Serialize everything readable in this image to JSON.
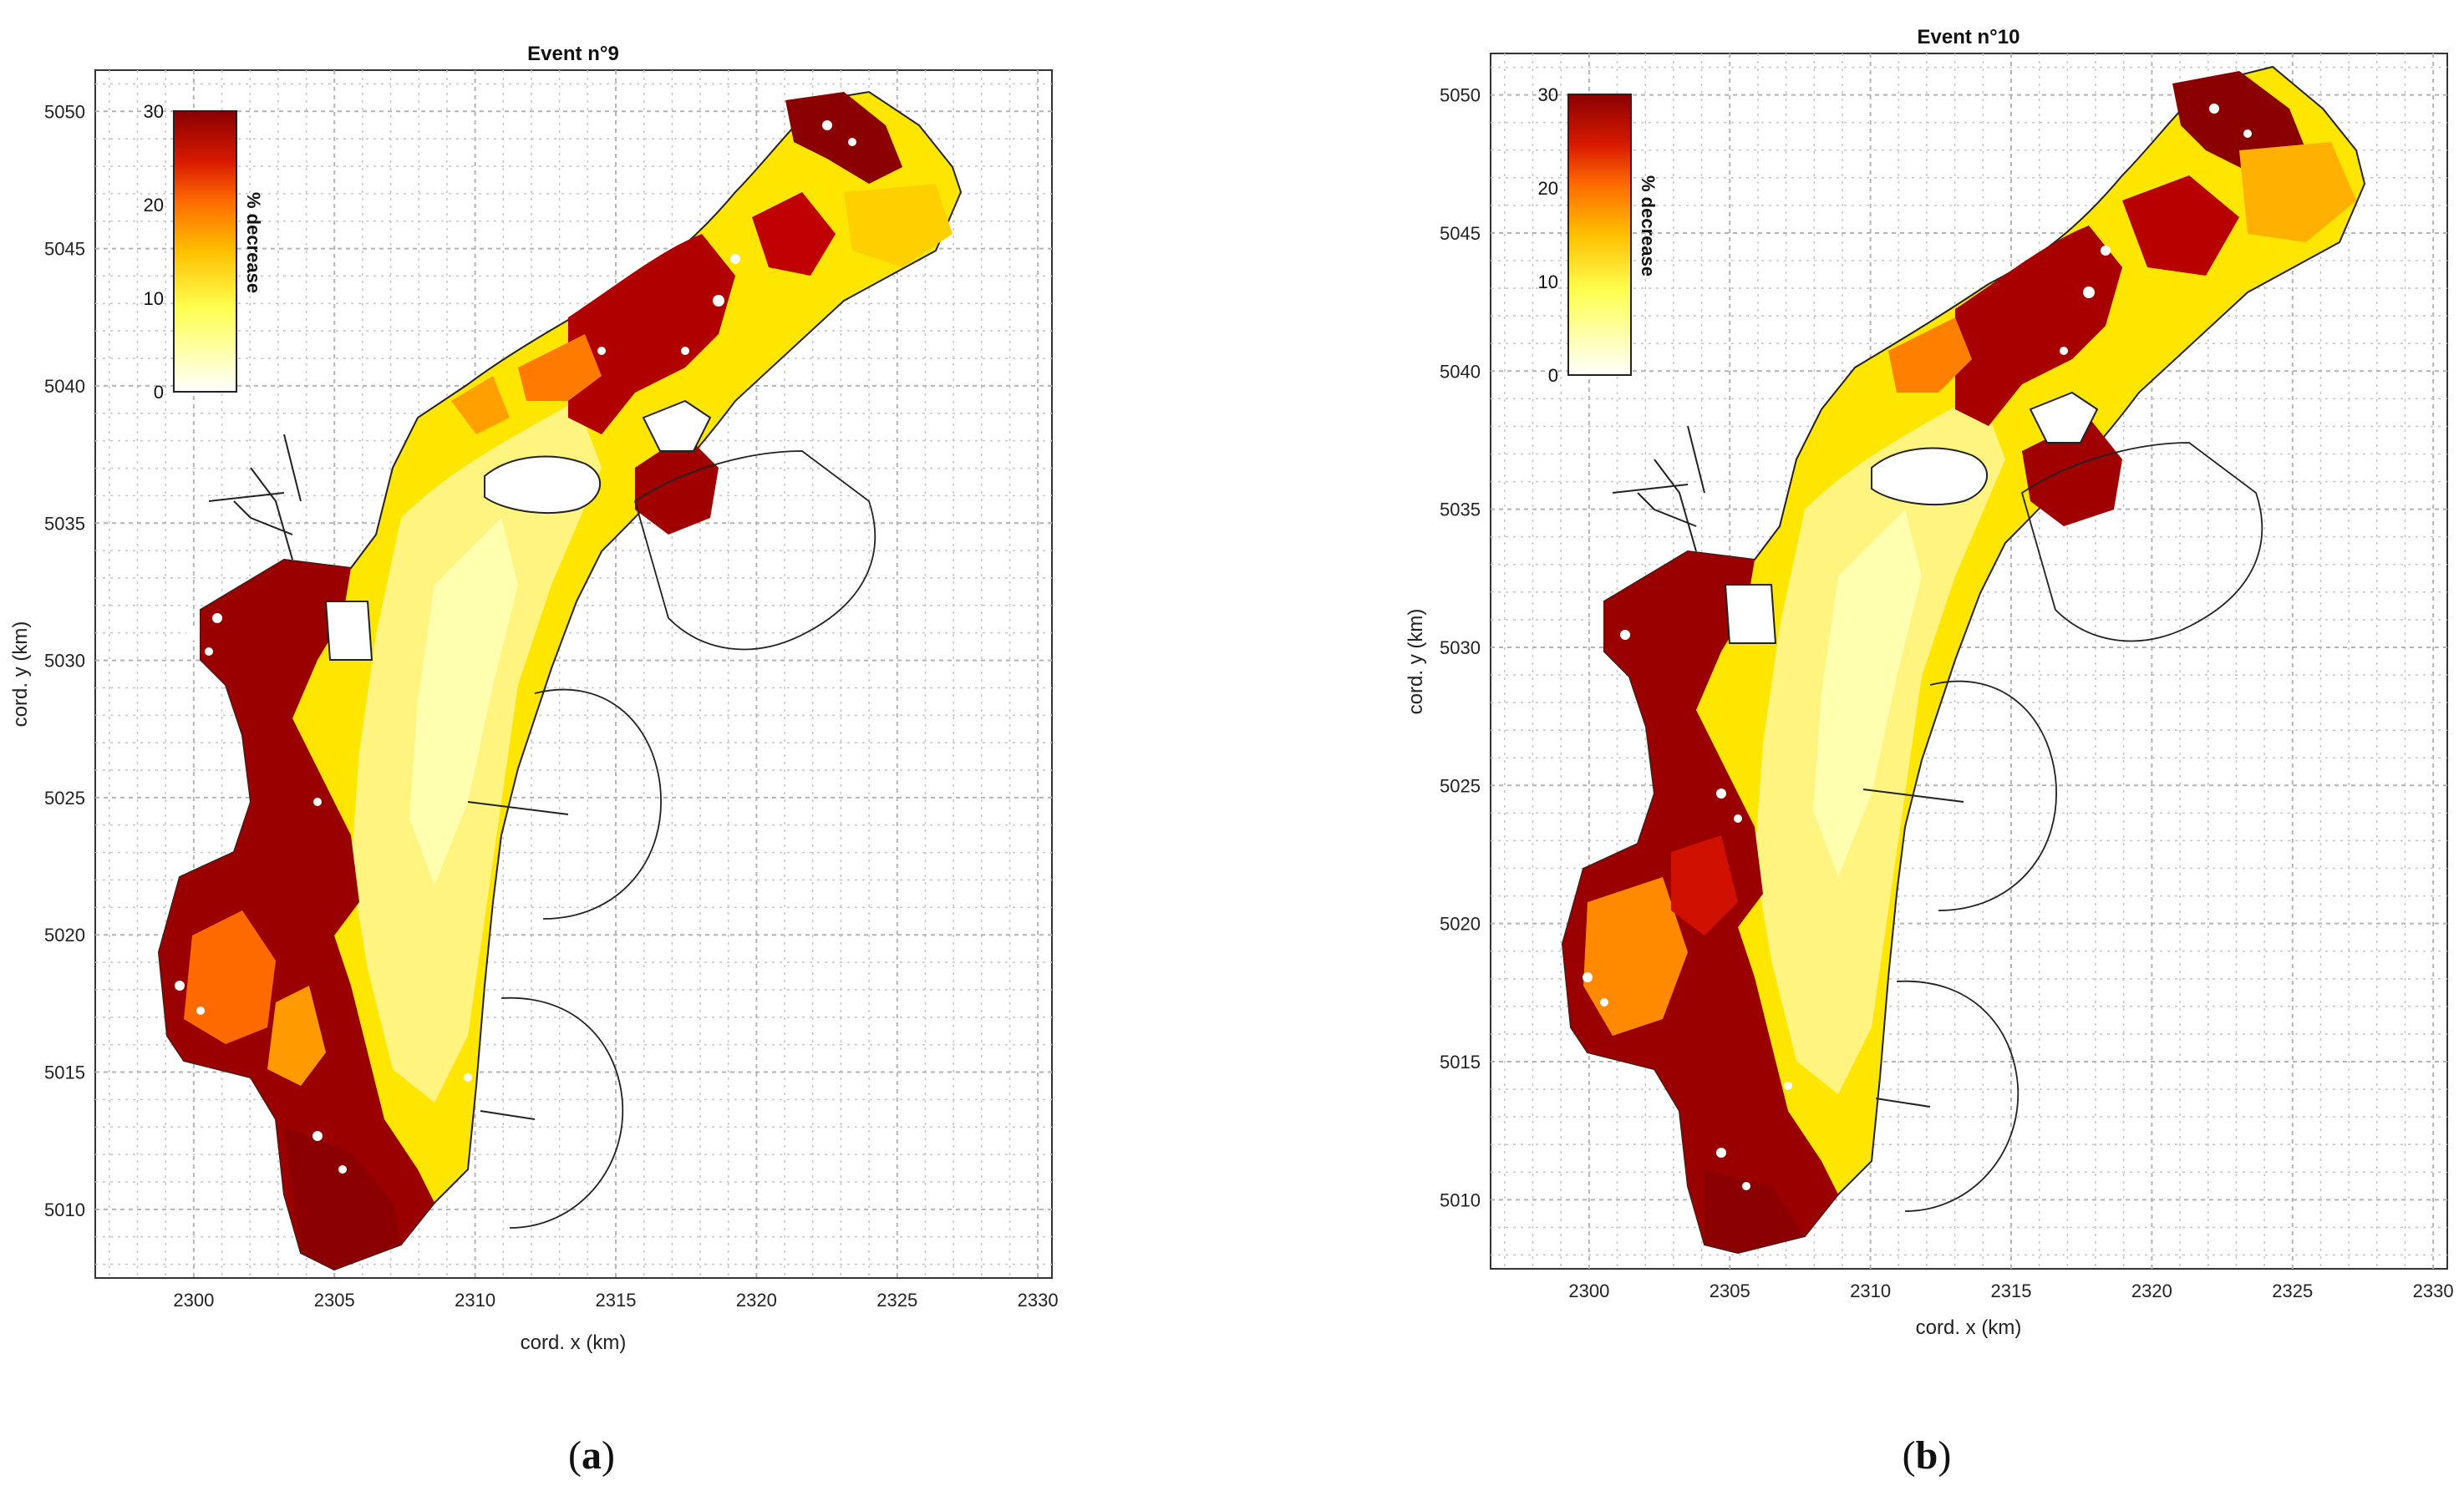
{
  "panels": [
    {
      "id": "a",
      "title": "Event n°9",
      "caption_letter": "a",
      "xlabel": "cord. x (km)",
      "ylabel": "cord. y (km)",
      "xticks": [
        "2300",
        "2305",
        "2310",
        "2315",
        "2320",
        "2325",
        "2330"
      ],
      "yticks": [
        "5010",
        "5015",
        "5020",
        "5025",
        "5030",
        "5035",
        "5040",
        "5045",
        "5050"
      ],
      "xlim": [
        2296.5,
        2330.5
      ],
      "ylim": [
        5007.5,
        5051.5
      ],
      "colorbar": {
        "label": "% decrease",
        "ticks": [
          "0",
          "10",
          "20",
          "30"
        ],
        "min": 0,
        "max": 30
      }
    },
    {
      "id": "b",
      "title": "Event n°10",
      "caption_letter": "b",
      "xlabel": "cord. x (km)",
      "ylabel": "cord. y (km)",
      "xticks": [
        "2300",
        "2305",
        "2310",
        "2315",
        "2320",
        "2325",
        "2330"
      ],
      "yticks": [
        "5010",
        "5015",
        "5020",
        "5025",
        "5030",
        "5035",
        "5040",
        "5045",
        "5050"
      ],
      "xlim": [
        2296.5,
        2330.5
      ],
      "ylim": [
        5007.5,
        5051.5
      ],
      "colorbar": {
        "label": "% decrease",
        "ticks": [
          "0",
          "10",
          "20",
          "30"
        ],
        "min": 0,
        "max": 30
      }
    }
  ],
  "caption_parens": [
    "(",
    ")"
  ],
  "colormap": [
    "#ffffff",
    "#ffff66",
    "#ffc000",
    "#ff7a00",
    "#e02000",
    "#8b0000"
  ]
}
